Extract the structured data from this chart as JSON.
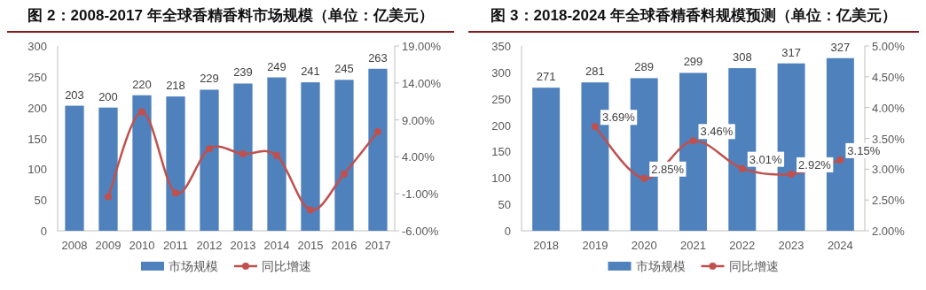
{
  "chart_data": [
    {
      "type": "bar",
      "title": "图 2：2008-2017 年全球香精香料市场规模（单位：亿美元）",
      "categories": [
        "2008",
        "2009",
        "2010",
        "2011",
        "2012",
        "2013",
        "2014",
        "2015",
        "2016",
        "2017"
      ],
      "series": [
        {
          "name": "市场规模",
          "color": "#4f81bd",
          "values": [
            203,
            200,
            220,
            218,
            229,
            239,
            249,
            241,
            245,
            263
          ],
          "value_labels": [
            "203",
            "200",
            "220",
            "218",
            "229",
            "239",
            "249",
            "241",
            "245",
            "263"
          ]
        },
        {
          "name": "同比增速",
          "type": "line",
          "axis": "y2",
          "color": "#c0504d",
          "values": [
            null,
            -1.4,
            10.1,
            -0.9,
            5.1,
            4.4,
            4.2,
            -3.2,
            1.7,
            7.4
          ]
        }
      ],
      "ylim": [
        0,
        300
      ],
      "yticks": [
        0,
        50,
        100,
        150,
        200,
        250,
        300
      ],
      "y2lim": [
        -6,
        19
      ],
      "y2ticks": [
        {
          "value": -6,
          "label": "-6.00%"
        },
        {
          "value": -1,
          "label": "-1.00%"
        },
        {
          "value": 4,
          "label": "4.00%"
        },
        {
          "value": 9,
          "label": "9.00%"
        },
        {
          "value": 14,
          "label": "14.00%"
        },
        {
          "value": 19,
          "label": "19.00%"
        }
      ],
      "marker": "circle",
      "legend": "bottom",
      "grid": false
    },
    {
      "type": "bar",
      "title": "图 3：2018-2024 年全球香精香料规模预测（单位：亿美元）",
      "categories": [
        "2018",
        "2019",
        "2020",
        "2021",
        "2022",
        "2023",
        "2024"
      ],
      "series": [
        {
          "name": "市场规模",
          "color": "#4f81bd",
          "values": [
            271,
            281,
            289,
            299,
            308,
            317,
            327
          ],
          "value_labels": [
            "271",
            "281",
            "289",
            "299",
            "308",
            "317",
            "327"
          ]
        },
        {
          "name": "同比增速",
          "type": "line",
          "axis": "y2",
          "color": "#c0504d",
          "values": [
            null,
            3.69,
            2.85,
            3.46,
            3.01,
            2.92,
            3.15
          ],
          "value_labels": [
            null,
            "3.69%",
            "2.85%",
            "3.46%",
            "3.01%",
            "2.92%",
            "3.15%"
          ]
        }
      ],
      "ylim": [
        0,
        350
      ],
      "yticks": [
        0,
        50,
        100,
        150,
        200,
        250,
        300,
        350
      ],
      "y2lim": [
        2,
        5
      ],
      "y2ticks": [
        {
          "value": 2,
          "label": "2.00%"
        },
        {
          "value": 2.5,
          "label": "2.50%"
        },
        {
          "value": 3,
          "label": "3.00%"
        },
        {
          "value": 3.5,
          "label": "3.50%"
        },
        {
          "value": 4,
          "label": "4.00%"
        },
        {
          "value": 4.5,
          "label": "4.50%"
        },
        {
          "value": 5,
          "label": "5.00%"
        }
      ],
      "marker": "circle",
      "legend": "bottom",
      "grid": false
    }
  ]
}
